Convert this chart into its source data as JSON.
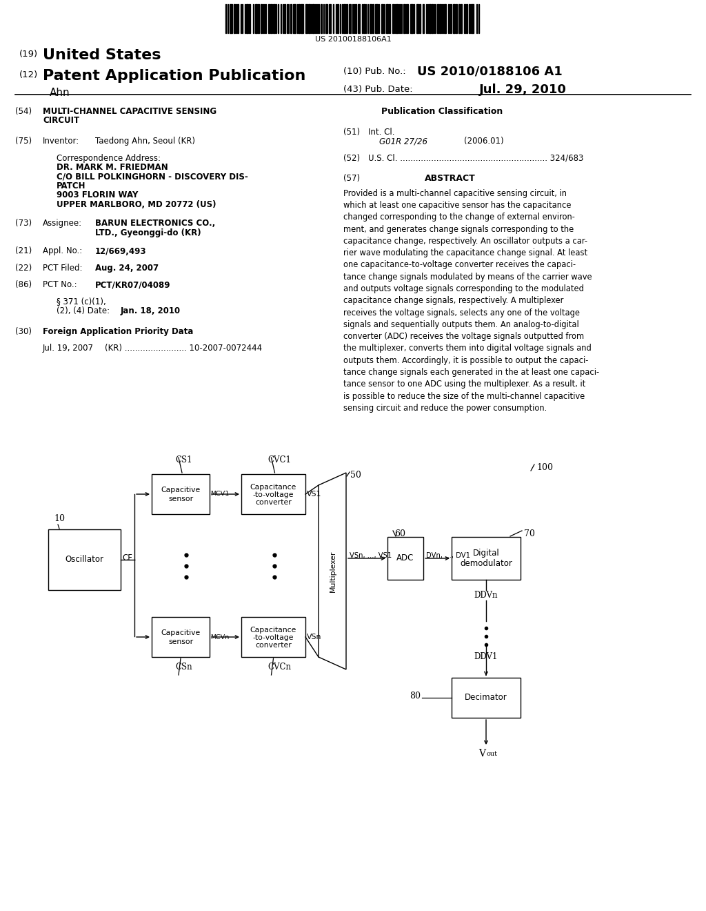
{
  "bg_color": "#ffffff",
  "barcode_text": "US 20100188106A1",
  "header": {
    "country": "United States",
    "type": "Patent Application Publication",
    "inventor": "Ahn",
    "pub_no_label": "(10) Pub. No.:",
    "pub_no": "US 2010/0188106 A1",
    "pub_date_label": "(43) Pub. Date:",
    "pub_date": "Jul. 29, 2010",
    "num19": "(19)",
    "num12": "(12)"
  },
  "left_col": {
    "num54": "(54)",
    "title1": "MULTI-CHANNEL CAPACITIVE SENSING",
    "title2": "CIRCUIT",
    "num75": "(75)",
    "inventor_label": "Inventor:",
    "inventor_val": "Taedong Ahn, Seoul (KR)",
    "corr_label": "Correspondence Address:",
    "corr1": "DR. MARK M. FRIEDMAN",
    "corr2": "C/O BILL POLKINGHORN - DISCOVERY DIS-",
    "corr3": "PATCH",
    "corr4": "9003 FLORIN WAY",
    "corr5": "UPPER MARLBORO, MD 20772 (US)",
    "num73": "(73)",
    "assignee_label": "Assignee:",
    "assignee1": "BARUN ELECTRONICS CO.,",
    "assignee2": "LTD., Gyeonggi-do (KR)",
    "num21": "(21)",
    "appl_label": "Appl. No.:",
    "appl_val": "12/669,493",
    "num22": "(22)",
    "pct_filed_label": "PCT Filed:",
    "pct_filed_val": "Aug. 24, 2007",
    "num86": "(86)",
    "pct_no_label": "PCT No.:",
    "pct_no_val": "PCT/KR07/04089",
    "sect_label": "§ 371 (c)(1),",
    "date_label": "(2), (4) Date:",
    "date_val": "Jan. 18, 2010",
    "num30": "(30)",
    "foreign_label": "Foreign Application Priority Data",
    "foreign_date": "Jul. 19, 2007",
    "foreign_kr": "(KR) ........................ 10-2007-0072444"
  },
  "right_col": {
    "pub_class_title": "Publication Classification",
    "num51": "(51)",
    "intcl_label": "Int. Cl.",
    "intcl_code": "G01R 27/26",
    "intcl_year": "(2006.01)",
    "num52": "(52)",
    "uscl_line": "U.S. Cl. ......................................................... 324/683",
    "num57": "(57)",
    "abstract_title": "ABSTRACT",
    "abstract": "Provided is a multi-channel capacitive sensing circuit, in which at least one capacitive sensor has the capacitance changed corresponding to the change of external environment, and generates change signals corresponding to the capacitance change, respectively. An oscillator outputs a carrier wave modulating the capacitance change signal. At least one capacitance-to-voltage converter receives the capacitance change signals modulated by means of the carrier wave and outputs voltage signals corresponding to the modulated capacitance change signals, respectively. A multiplexer receives the voltage signals, selects any one of the voltage signals and sequentially outputs them. An analog-to-digital converter (ADC) receives the voltage signals outputted from the multiplexer, converts them into digital voltage signals and outputs them. Accordingly, it is possible to output the capacitance change signals each generated in the at least one capacitance sensor to one ADC using the multiplexer. As a result, it is possible to reduce the size of the multi-channel capacitive sensing circuit and reduce the power consumption."
  },
  "diagram": {
    "ref": "100",
    "osc_label": "Oscillator",
    "osc_num": "10",
    "cf_label": "CF",
    "cs1_label": "Capacitive\nsensor",
    "mcv1_label": "MCV1",
    "cvc1_label": "Capacitance\n-to-voltage\nconverter",
    "vs1_label": "VS1",
    "cs1_top": "CS1",
    "cvc1_top": "CVC1",
    "csn_label": "Capacitive\nsensor",
    "mcvn_label": "MCVn",
    "cvcn_label": "Capacitance\n-to-voltage\nconverter",
    "vsn_label": "VSn",
    "csn_bot": "CSn",
    "cvcn_bot": "CVCn",
    "mux_label": "Multiplexer",
    "mux_num": "50",
    "adc_label": "ADC",
    "adc_num": "60",
    "vsn_vs1": "VSn, ..., VS1",
    "dvn_dv1": "DVn, ..., DV1",
    "dd_label1": "Digital",
    "dd_label2": "demodulator",
    "dd_num": "70",
    "ddvn": "DDVn",
    "ddv1": "DDV1",
    "dec_label": "Decimator",
    "dec_num": "80",
    "vout": "V",
    "vout_sub": "out"
  }
}
